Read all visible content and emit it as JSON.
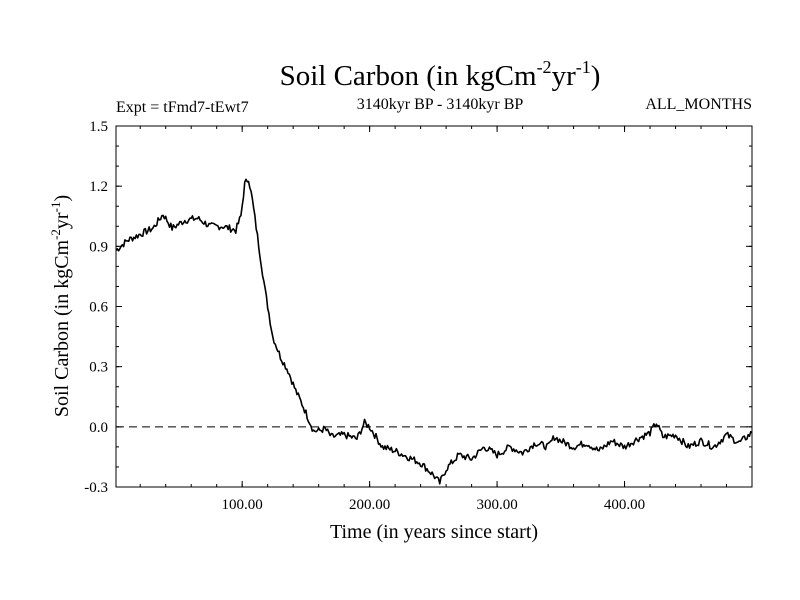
{
  "chart_data": {
    "type": "line",
    "title_main": "Soil Carbon (in kgCm",
    "title_sup1": "-2",
    "title_mid": "yr",
    "title_sup2": "-1",
    "title_end": ")",
    "subtitle_left": "Expt = tFmd7-tEwt7",
    "subtitle_center": "3140kyr BP - 3140kyr BP",
    "subtitle_right": "ALL_MONTHS",
    "xlabel": "Time (in years since start)",
    "ylabel_main": "Soil Carbon (in kgCm",
    "ylabel_sup1": "-2",
    "ylabel_mid": "yr",
    "ylabel_sup2": "-1",
    "ylabel_end": ")",
    "xlim": [
      1,
      500
    ],
    "ylim": [
      -0.3,
      1.5
    ],
    "xticks": [
      100,
      200,
      300,
      400
    ],
    "xtick_labels": [
      "100.00",
      "200.00",
      "300.00",
      "400.00"
    ],
    "yticks": [
      -0.3,
      0.0,
      0.3,
      0.6,
      0.9,
      1.2,
      1.5
    ],
    "ytick_labels": [
      "-0.3",
      "0.0",
      "0.3",
      "0.6",
      "0.9",
      "1.2",
      "1.5"
    ],
    "reference_line": 0.0,
    "series": [
      {
        "name": "Soil Carbon",
        "x": [
          1,
          10,
          20,
          30,
          38,
          45,
          55,
          65,
          75,
          85,
          95,
          99,
          102,
          105,
          108,
          112,
          118,
          124,
          130,
          136,
          142,
          148,
          152,
          156,
          160,
          165,
          170,
          180,
          190,
          196,
          200,
          210,
          220,
          230,
          240,
          250,
          255,
          260,
          270,
          280,
          290,
          300,
          310,
          320,
          330,
          340,
          345,
          350,
          360,
          370,
          380,
          390,
          400,
          410,
          420,
          425,
          430,
          440,
          450,
          460,
          470,
          480,
          490,
          500
        ],
        "y": [
          0.88,
          0.93,
          0.96,
          0.99,
          1.06,
          0.99,
          1.03,
          1.04,
          1.0,
          1.0,
          0.98,
          1.05,
          1.21,
          1.24,
          1.13,
          0.95,
          0.68,
          0.45,
          0.35,
          0.28,
          0.18,
          0.1,
          0.04,
          -0.02,
          -0.02,
          -0.01,
          -0.05,
          -0.04,
          -0.06,
          0.02,
          0.0,
          -0.1,
          -0.12,
          -0.15,
          -0.18,
          -0.24,
          -0.28,
          -0.21,
          -0.14,
          -0.16,
          -0.1,
          -0.14,
          -0.1,
          -0.13,
          -0.08,
          -0.1,
          -0.05,
          -0.07,
          -0.1,
          -0.08,
          -0.12,
          -0.07,
          -0.1,
          -0.06,
          -0.03,
          0.02,
          -0.05,
          -0.04,
          -0.1,
          -0.07,
          -0.1,
          -0.04,
          -0.08,
          -0.03
        ]
      }
    ]
  }
}
